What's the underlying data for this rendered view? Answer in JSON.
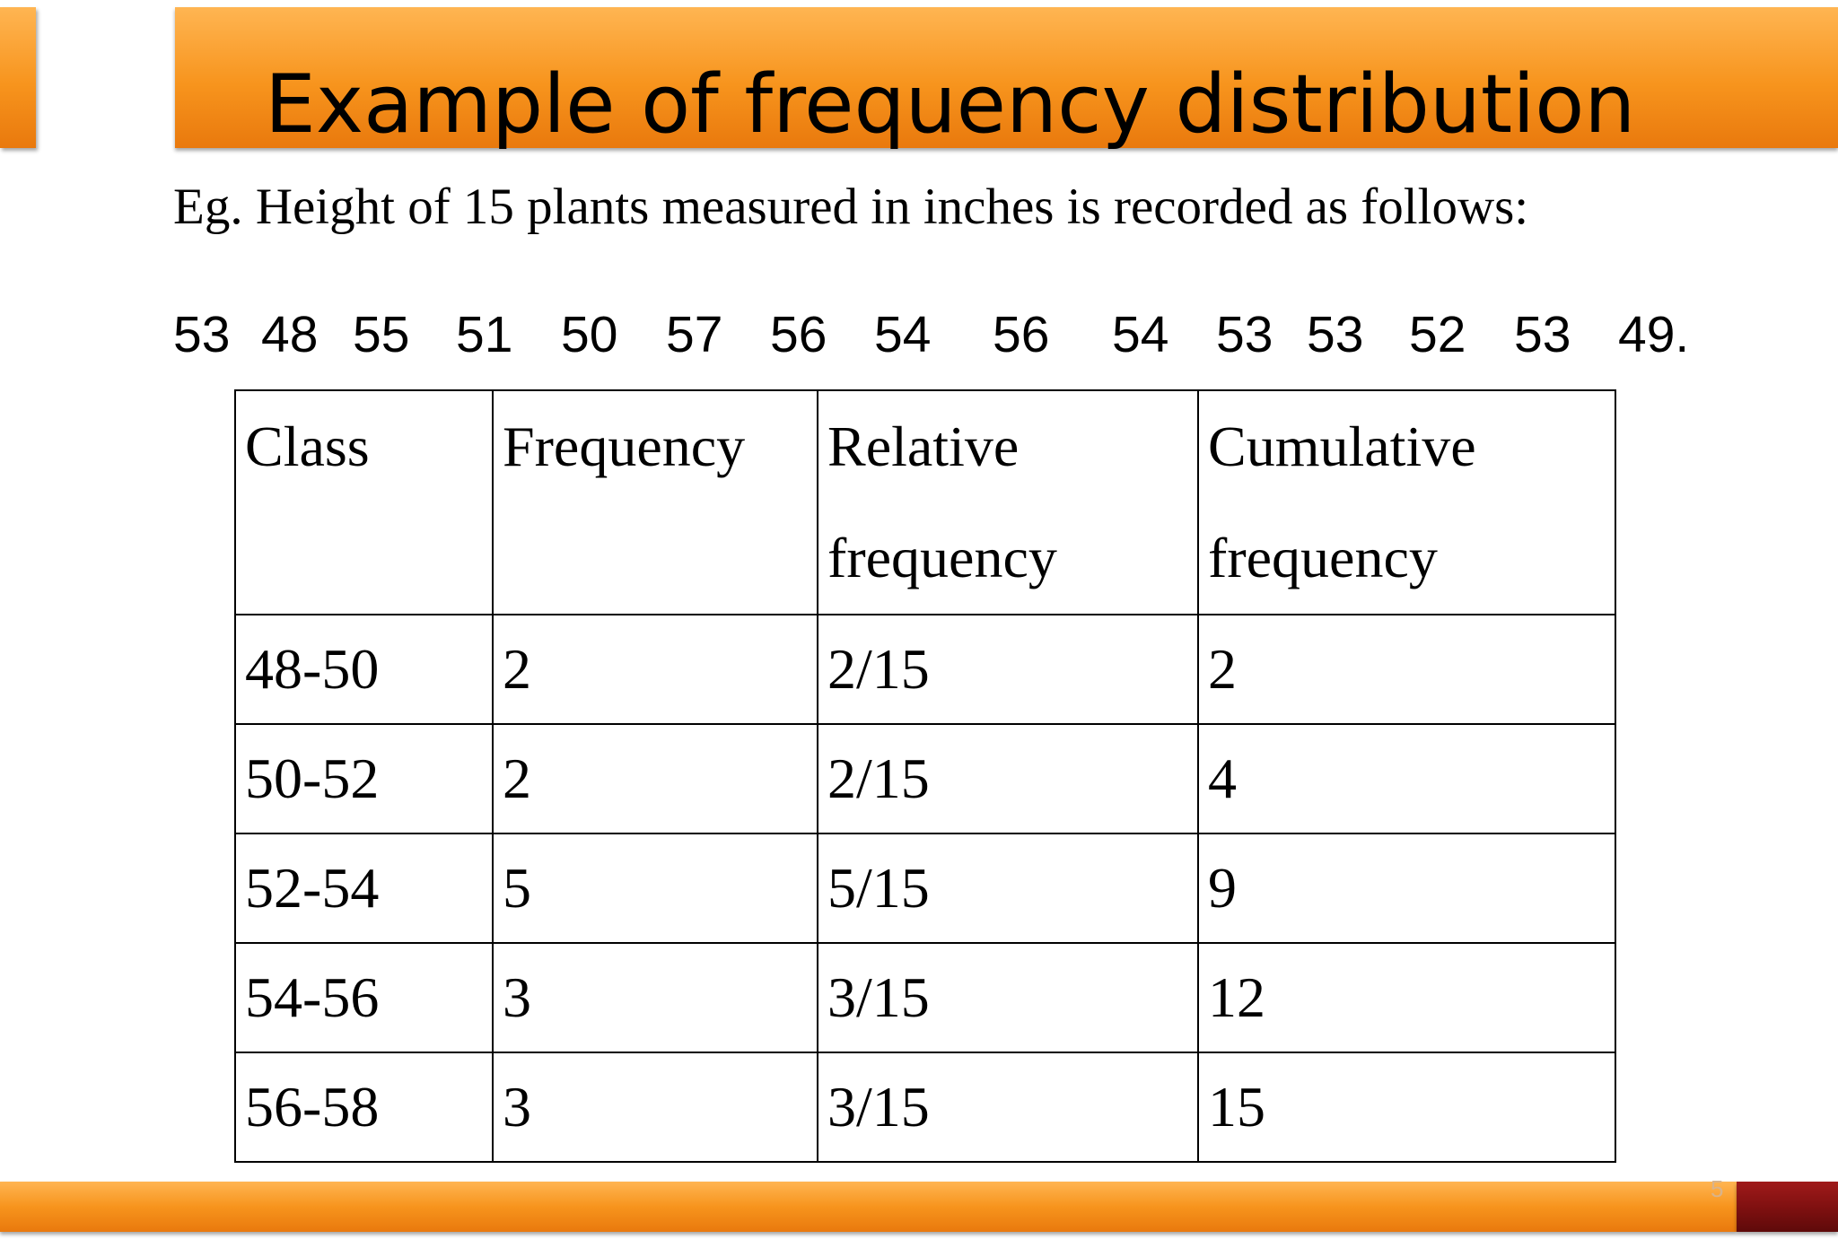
{
  "slide": {
    "title": "Example of frequency distribution",
    "intro": "Eg. Height of 15 plants measured in inches is recorded as follows:",
    "data_values": [
      "53",
      "48",
      "55",
      "51",
      "50",
      "57",
      "56",
      "54",
      "56",
      "54",
      "53",
      "53",
      "52",
      "53",
      "49."
    ],
    "page_number": "5"
  },
  "table": {
    "headers": {
      "class": "Class",
      "frequency": "Frequency",
      "relative_line1": "Relative",
      "relative_line2": "frequency",
      "cumulative_line1": "Cumulative",
      "cumulative_line2": "frequency"
    },
    "rows": [
      {
        "class": "48-50",
        "frequency": "2",
        "relative": "2/15",
        "cumulative": "2"
      },
      {
        "class": "50-52",
        "frequency": "2",
        "relative": "2/15",
        "cumulative": "4"
      },
      {
        "class": "52-54",
        "frequency": "5",
        "relative": "5/15",
        "cumulative": "9"
      },
      {
        "class": "54-56",
        "frequency": "3",
        "relative": "3/15",
        "cumulative": "12"
      },
      {
        "class": "56-58",
        "frequency": "3",
        "relative": "3/15",
        "cumulative": "15"
      }
    ]
  },
  "colors": {
    "bar_orange": "#f7941d",
    "bar_dark_red": "#7a0f0f"
  }
}
